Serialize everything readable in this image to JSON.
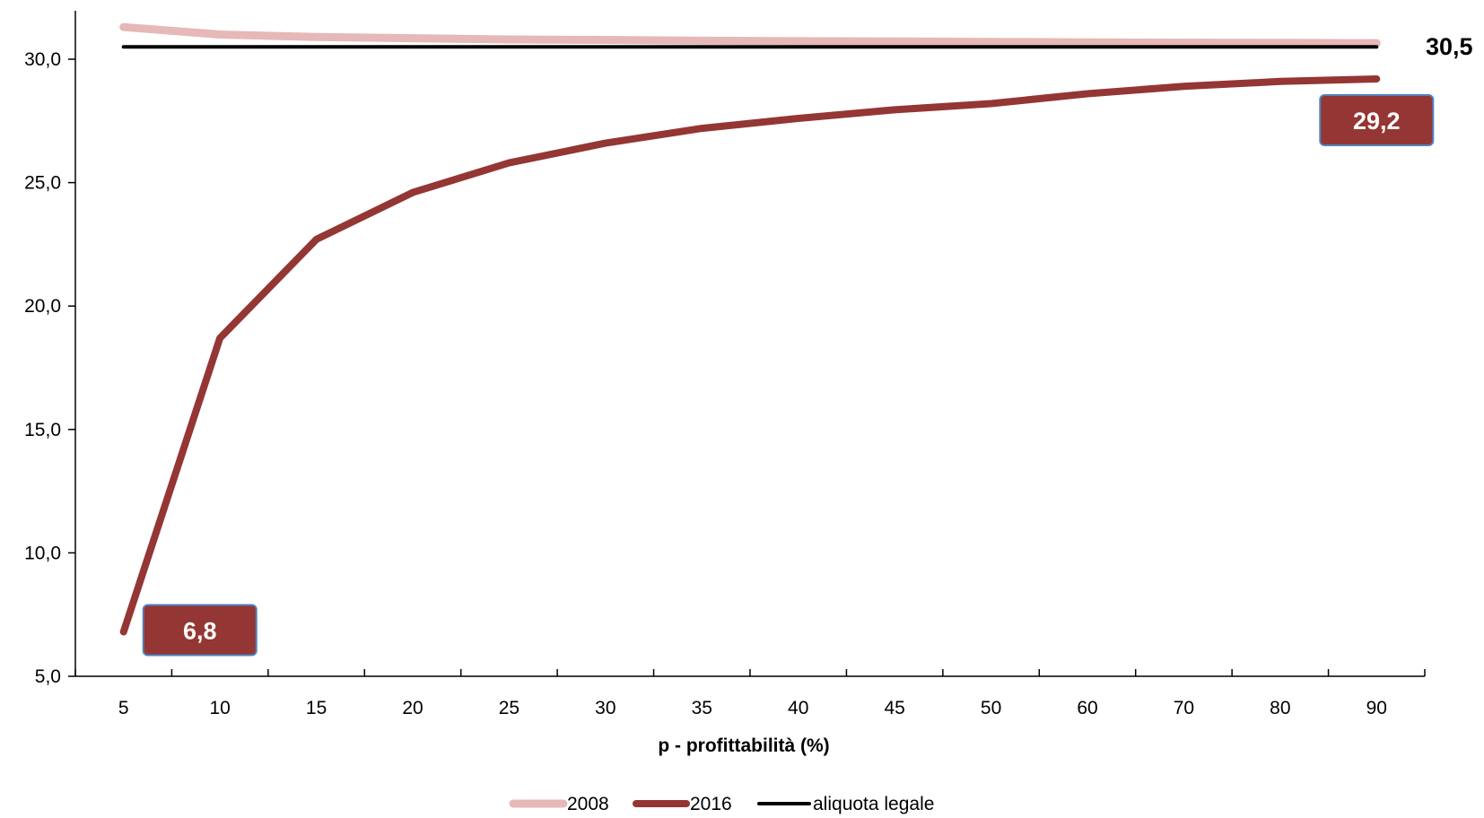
{
  "chart_data": {
    "type": "line",
    "xlabel": "p - profittabilità (%)",
    "categories": [
      "5",
      "10",
      "15",
      "20",
      "25",
      "30",
      "35",
      "40",
      "45",
      "50",
      "60",
      "70",
      "80",
      "90"
    ],
    "ylim": [
      5,
      32
    ],
    "yticks": [
      "5,0",
      "10,0",
      "15,0",
      "20,0",
      "25,0",
      "30,0"
    ],
    "ytick_values": [
      5,
      10,
      15,
      20,
      25,
      30
    ],
    "series": [
      {
        "name": "2008",
        "color": "#e6b8b7",
        "values": [
          31.3,
          31.0,
          30.9,
          30.85,
          30.8,
          30.78,
          30.75,
          30.73,
          30.72,
          30.7,
          30.68,
          30.67,
          30.66,
          30.65
        ]
      },
      {
        "name": "2016",
        "color": "#943634",
        "values": [
          6.8,
          18.7,
          22.7,
          24.6,
          25.8,
          26.6,
          27.2,
          27.6,
          27.95,
          28.2,
          28.6,
          28.9,
          29.1,
          29.2
        ]
      },
      {
        "name": "aliquota legale",
        "color": "#000000",
        "values": [
          30.5,
          30.5,
          30.5,
          30.5,
          30.5,
          30.5,
          30.5,
          30.5,
          30.5,
          30.5,
          30.5,
          30.5,
          30.5,
          30.5
        ]
      }
    ],
    "annotations": [
      {
        "text": "6,8",
        "series": "2016",
        "category": "5"
      },
      {
        "text": "29,2",
        "series": "2016",
        "category": "90"
      },
      {
        "text": "30,5",
        "series": "aliquota legale",
        "category": "90"
      }
    ],
    "legend": "bottom",
    "grid": false
  }
}
